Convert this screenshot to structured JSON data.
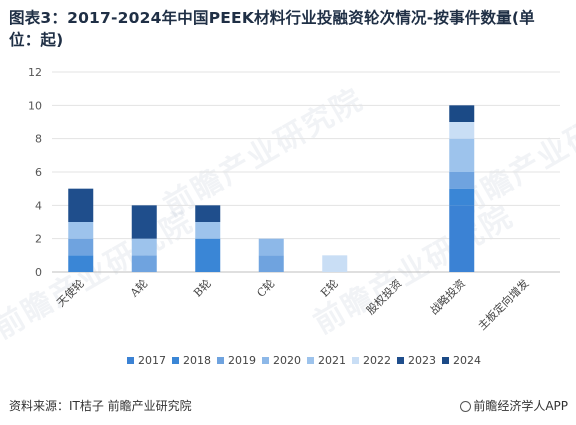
{
  "title": "图表3：2017-2024年中国PEEK材料行业投融资轮次情况-按事件数量(单位：起)",
  "source": "资料来源：IT桔子 前瞻产业研究院",
  "brand": "前瞻经济学人APP",
  "watermark_text": "前瞻产业研究院",
  "colors": {
    "2017": "#3b82d4",
    "2018": "#3a86d6",
    "2019": "#6fa3df",
    "2020": "#8db8e8",
    "2021": "#9dc3ec",
    "2022": "#c9def5",
    "2023": "#1f4e8c",
    "2024": "#1b4a86"
  },
  "chart_data": {
    "type": "bar",
    "stacked": true,
    "title": "图表3：2017-2024年中国PEEK材料行业投融资轮次情况-按事件数量(单位：起)",
    "xlabel": "",
    "ylabel": "",
    "ylim": [
      0,
      12
    ],
    "yticks": [
      0,
      2,
      4,
      6,
      8,
      10,
      12
    ],
    "grid": true,
    "legend": "bottom",
    "categories": [
      "天使轮",
      "A轮",
      "B轮",
      "C轮",
      "E轮",
      "股权投资",
      "战略投资",
      "主板定向增发"
    ],
    "series": [
      {
        "name": "2017",
        "values": [
          0,
          0,
          0,
          0,
          0,
          0,
          4,
          0
        ]
      },
      {
        "name": "2018",
        "values": [
          1,
          0,
          2,
          0,
          0,
          0,
          1,
          0
        ]
      },
      {
        "name": "2019",
        "values": [
          1,
          1,
          0,
          1,
          0,
          0,
          1,
          0
        ]
      },
      {
        "name": "2020",
        "values": [
          0,
          0,
          0,
          1,
          0,
          0,
          0,
          0
        ]
      },
      {
        "name": "2021",
        "values": [
          1,
          1,
          1,
          0,
          0,
          0,
          2,
          0
        ]
      },
      {
        "name": "2022",
        "values": [
          0,
          0,
          0,
          0,
          1,
          0,
          1,
          0
        ]
      },
      {
        "name": "2023",
        "values": [
          2,
          2,
          1,
          0,
          0,
          0,
          0,
          0
        ]
      },
      {
        "name": "2024",
        "values": [
          0,
          0,
          0,
          0,
          0,
          0,
          1,
          0
        ]
      }
    ]
  }
}
